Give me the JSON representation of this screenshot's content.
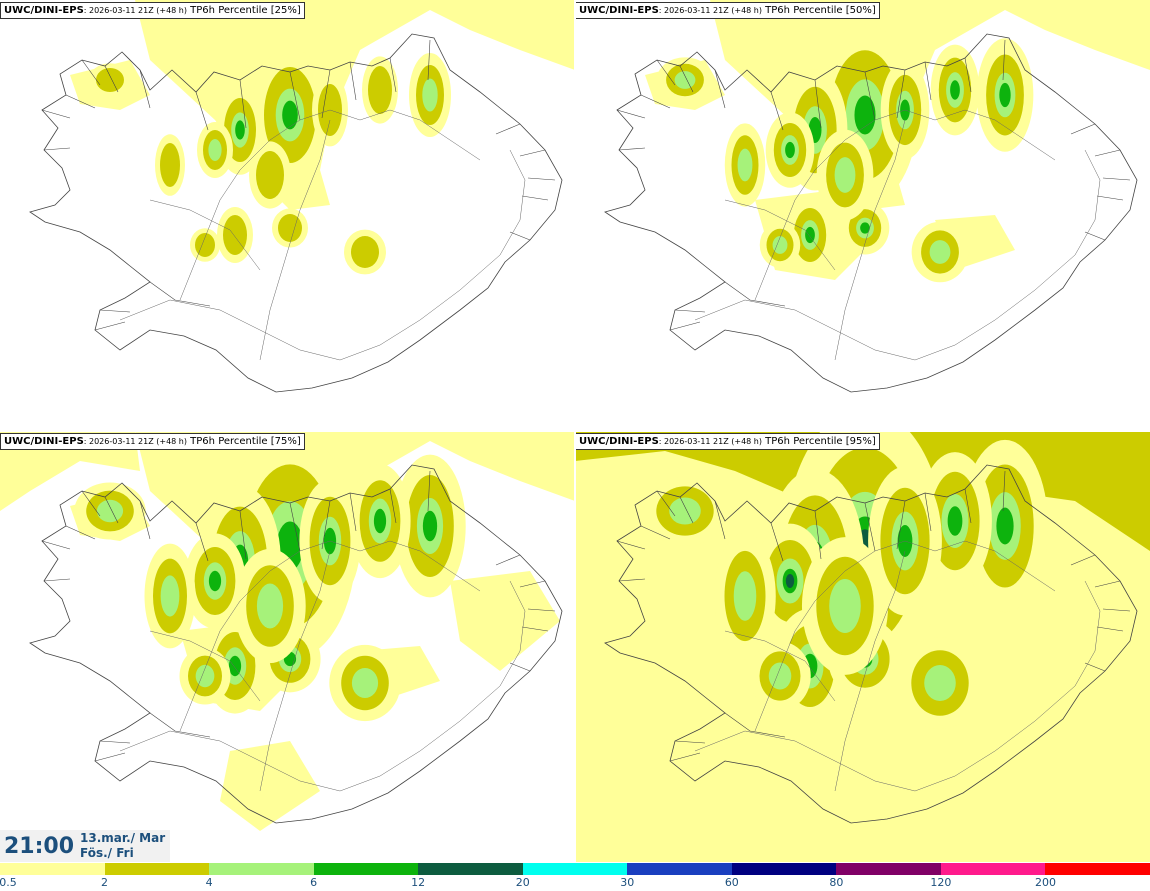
{
  "panels": [
    {
      "model": "UWC/DINI-EPS",
      "run": ": 2026-03-11 21Z (+48 h)",
      "label": "TP6h Percentile [25%]",
      "intensity": 0
    },
    {
      "model": "UWC/DINI-EPS",
      "run": ": 2026-03-11 21Z (+48 h)",
      "label": "TP6h Percentile [50%]",
      "intensity": 1
    },
    {
      "model": "UWC/DINI-EPS",
      "run": ": 2026-03-11 21Z (+48 h)",
      "label": "TP6h Percentile [75%]",
      "intensity": 2
    },
    {
      "model": "UWC/DINI-EPS",
      "run": ": 2026-03-11 21Z (+48 h)",
      "label": "TP6h Percentile [95%]",
      "intensity": 3
    }
  ],
  "valid_time": {
    "time": "21:00",
    "date_line1": "13.mar./ Mar",
    "date_line2": "Fös./ Fri"
  },
  "colorbar": {
    "colors": [
      "#ffff99",
      "#cccc00",
      "#a6f27a",
      "#0db30d",
      "#0d5c3f",
      "#00ffee",
      "#1a3fbf",
      "#000080",
      "#800066",
      "#ff1a8c",
      "#ff0000"
    ],
    "ticks": [
      "0.5",
      "2",
      "4",
      "6",
      "12",
      "20",
      "30",
      "60",
      "80",
      "120",
      "200"
    ]
  },
  "legend_colors": {
    "background": "#ffffff",
    "outline": "#555555",
    "time_text": "#1c4f7c"
  }
}
